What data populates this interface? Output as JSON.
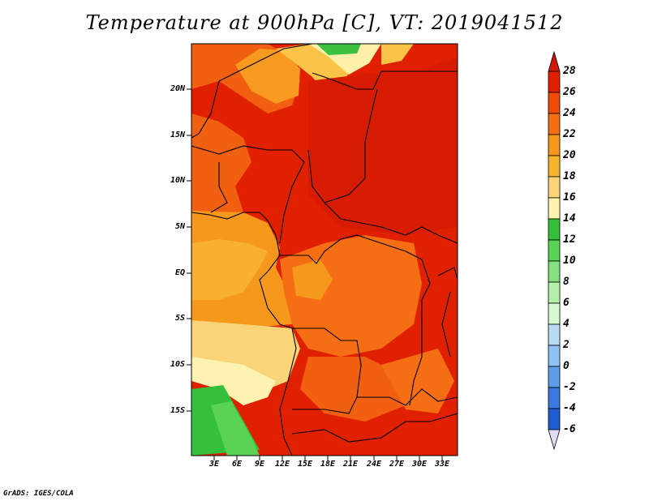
{
  "title": "Temperature at 900hPa [C], VT: 2019041512",
  "credit": "GrADS: IGES/COLA",
  "lat_labels": [
    "20N",
    "15N",
    "10N",
    "5N",
    "EQ",
    "5S",
    "10S",
    "15S"
  ],
  "lon_labels": [
    "3E",
    "6E",
    "9E",
    "12E",
    "15E",
    "18E",
    "21E",
    "24E",
    "27E",
    "30E",
    "33E"
  ],
  "colorbar": {
    "labels": [
      "28",
      "26",
      "24",
      "22",
      "20",
      "18",
      "16",
      "14",
      "12",
      "10",
      "8",
      "6",
      "4",
      "2",
      "0",
      "-2",
      "-4",
      "-6"
    ],
    "colors": [
      "#d01808",
      "#e02000",
      "#f04a0a",
      "#f56e14",
      "#f6981c",
      "#f8b42c",
      "#fcd478",
      "#fef2b0",
      "#34c03c",
      "#5ad256",
      "#86e080",
      "#b4f0aa",
      "#d8f8d2",
      "#b8dcf6",
      "#90c2f2",
      "#5e9ee8",
      "#3a7ae0",
      "#1e5cd0",
      "#1040b0",
      "#0a2a8c",
      "#080e6c"
    ],
    "over_color": "#d01808",
    "under_color": "#dcdcf8"
  }
}
